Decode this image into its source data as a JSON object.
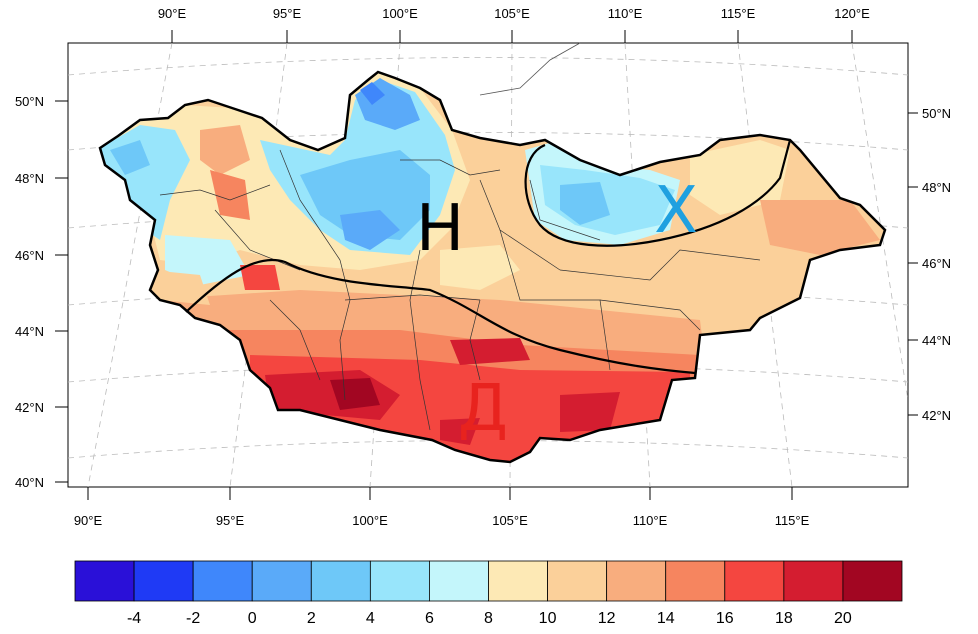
{
  "map": {
    "top_lon_labels": [
      "90°E",
      "95°E",
      "100°E",
      "105°E",
      "110°E",
      "115°E",
      "120°E"
    ],
    "bottom_lon_labels": [
      "90°E",
      "95°E",
      "100°E",
      "105°E",
      "110°E",
      "115°E"
    ],
    "left_lat_labels": [
      "50°N",
      "48°N",
      "46°N",
      "44°N",
      "42°N",
      "40°N"
    ],
    "right_lat_labels": [
      "50°N",
      "48°N",
      "46°N",
      "44°N",
      "42°N"
    ],
    "regions": [
      {
        "label": "Н",
        "color": "#000000"
      },
      {
        "label": "Х",
        "color": "#1fa0e0"
      },
      {
        "label": "Д",
        "color": "#e8231e"
      }
    ]
  },
  "colorbar": {
    "colors": [
      "#2a10d8",
      "#1f3af5",
      "#3f87fb",
      "#5aaaf9",
      "#6ec8f8",
      "#98e5fb",
      "#c4f6fb",
      "#fde9b5",
      "#fbd09a",
      "#f8ad7e",
      "#f6855f",
      "#f44640",
      "#d41d30",
      "#a20622"
    ],
    "labels": [
      "-4",
      "-2",
      "0",
      "2",
      "4",
      "6",
      "8",
      "10",
      "12",
      "14",
      "16",
      "18",
      "20"
    ]
  }
}
